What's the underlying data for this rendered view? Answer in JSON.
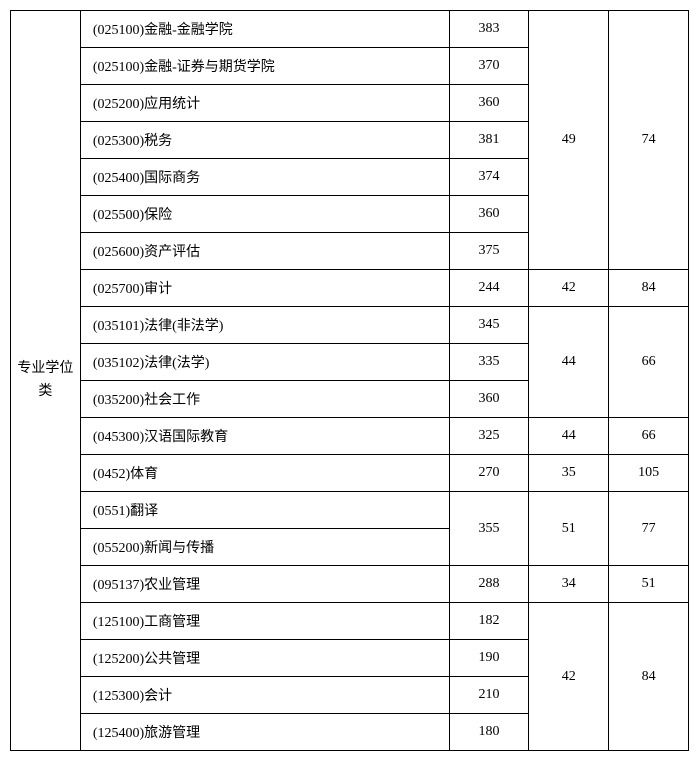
{
  "table": {
    "category_label": "专业学位类",
    "rows": [
      {
        "name": "(025100)金融-金融学院",
        "score": "383"
      },
      {
        "name": "(025100)金融-证券与期货学院",
        "score": "370"
      },
      {
        "name": "(025200)应用统计",
        "score": "360"
      },
      {
        "name": "(025300)税务",
        "score": "381"
      },
      {
        "name": "(025400)国际商务",
        "score": "374"
      },
      {
        "name": "(025500)保险",
        "score": "360"
      },
      {
        "name": "(025600)资产评估",
        "score": "375"
      },
      {
        "name": "(025700)审计",
        "score": "244"
      },
      {
        "name": "(035101)法律(非法学)",
        "score": "345"
      },
      {
        "name": "(035102)法律(法学)",
        "score": "335"
      },
      {
        "name": "(035200)社会工作",
        "score": "360"
      },
      {
        "name": "(045300)汉语国际教育",
        "score": "325"
      },
      {
        "name": "(0452)体育",
        "score": "270"
      },
      {
        "name": "(0551)翻译",
        "score": null
      },
      {
        "name": "(055200)新闻与传播",
        "score": null
      },
      {
        "name": "(095137)农业管理",
        "score": "288"
      },
      {
        "name": "(125100)工商管理",
        "score": "182"
      },
      {
        "name": "(125200)公共管理",
        "score": "190"
      },
      {
        "name": "(125300)会计",
        "score": "210"
      },
      {
        "name": "(125400)旅游管理",
        "score": "180"
      }
    ],
    "groups": [
      {
        "col4": "49",
        "col5": "74"
      },
      {
        "col4": "42",
        "col5": "84"
      },
      {
        "col4": "44",
        "col5": "66"
      },
      {
        "col4": "44",
        "col5": "66"
      },
      {
        "col4": "35",
        "col5": "105"
      },
      {
        "score": "355",
        "col4": "51",
        "col5": "77"
      },
      {
        "col4": "34",
        "col5": "51"
      },
      {
        "col4": "42",
        "col5": "84"
      }
    ],
    "colors": {
      "border": "#000000",
      "background": "#ffffff",
      "text": "#000000"
    },
    "font_size": 14
  }
}
